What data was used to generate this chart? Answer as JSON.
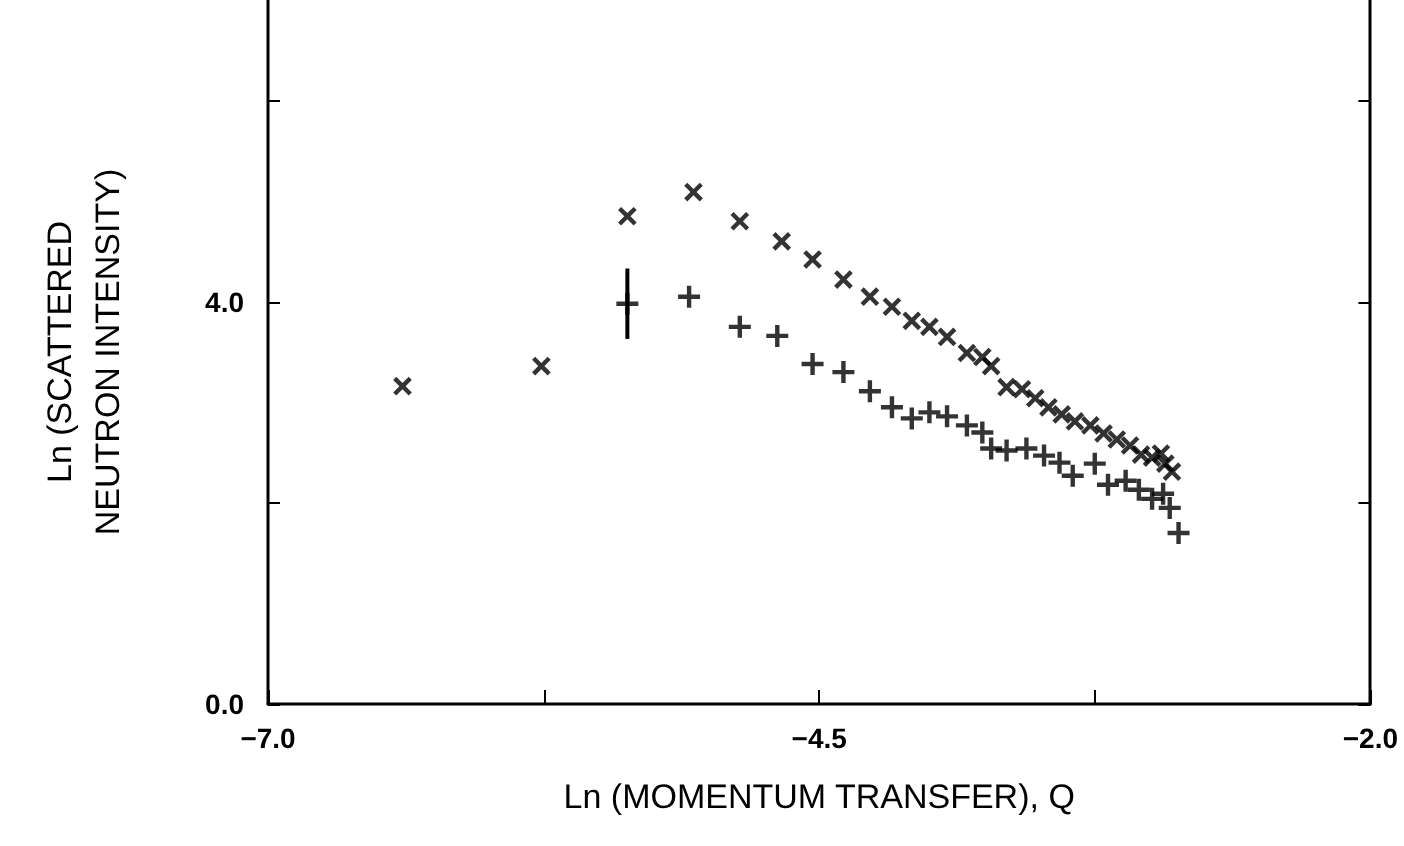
{
  "chart_data": {
    "type": "scatter",
    "xlabel": "Ln (MOMENTUM TRANSFER), Q",
    "ylabel": "Ln (SCATTERED\nNEUTRON INTENSITY)",
    "xlim": [
      -7.0,
      -2.0
    ],
    "xticks": [
      {
        "value": -7,
        "label": "−7.0"
      },
      {
        "value": -5.75,
        "label": null
      },
      {
        "value": -4.5,
        "label": "−4.5"
      },
      {
        "value": -3.25,
        "label": null
      },
      {
        "value": -2,
        "label": "−2.0"
      }
    ],
    "ylim": [
      0,
      7
    ],
    "yticks": [
      {
        "value": 0,
        "label": "0.0"
      },
      {
        "value": 2,
        "label": null
      },
      {
        "value": 4,
        "label": "4.0"
      },
      {
        "value": 6,
        "label": null
      }
    ],
    "grid": false,
    "marker": "cross",
    "series": [
      {
        "color": "#000000",
        "x": [
          -6.39,
          -5.76,
          -5.37,
          -5.07,
          -4.86,
          -4.67,
          -4.53,
          -4.39,
          -4.27,
          -4.17,
          -4.08,
          -4.0,
          -3.92,
          -3.83,
          -3.76,
          -3.72,
          -3.65,
          -3.58,
          -3.52,
          -3.46,
          -3.4,
          -3.34,
          -3.27,
          -3.21,
          -3.15,
          -3.09,
          -3.04,
          -2.99,
          -2.95,
          -2.93,
          -2.9
        ],
        "values": [
          3.16,
          3.36,
          4.85,
          5.09,
          4.8,
          4.6,
          4.42,
          4.22,
          4.05,
          3.95,
          3.81,
          3.75,
          3.65,
          3.49,
          3.45,
          3.36,
          3.15,
          3.13,
          3.04,
          2.95,
          2.88,
          2.81,
          2.77,
          2.69,
          2.63,
          2.57,
          2.48,
          2.45,
          2.49,
          2.39,
          2.31
        ]
      },
      {
        "color": "#000000",
        "x": [
          -5.37,
          -5.09,
          -4.86,
          -4.69,
          -4.53,
          -4.39,
          -4.27,
          -4.17,
          -4.08,
          -4.0,
          -3.92,
          -3.83,
          -3.76,
          -3.72,
          -3.65,
          -3.56,
          -3.48,
          -3.41,
          -3.35,
          -3.25,
          -3.19,
          -3.11,
          -3.05,
          -2.99,
          -2.94,
          -2.91,
          -2.87
        ],
        "values": [
          3.98,
          4.05,
          3.75,
          3.66,
          3.38,
          3.3,
          3.11,
          2.95,
          2.84,
          2.9,
          2.86,
          2.77,
          2.7,
          2.54,
          2.52,
          2.54,
          2.47,
          2.4,
          2.27,
          2.39,
          2.18,
          2.22,
          2.13,
          2.04,
          2.09,
          1.95,
          1.7
        ],
        "errors": [
          0.35,
          null,
          null,
          null,
          null,
          null,
          null,
          null,
          null,
          null,
          null,
          null,
          null,
          null,
          null,
          null,
          null,
          null,
          null,
          null,
          null,
          null,
          null,
          null,
          null,
          null,
          null
        ]
      }
    ]
  }
}
